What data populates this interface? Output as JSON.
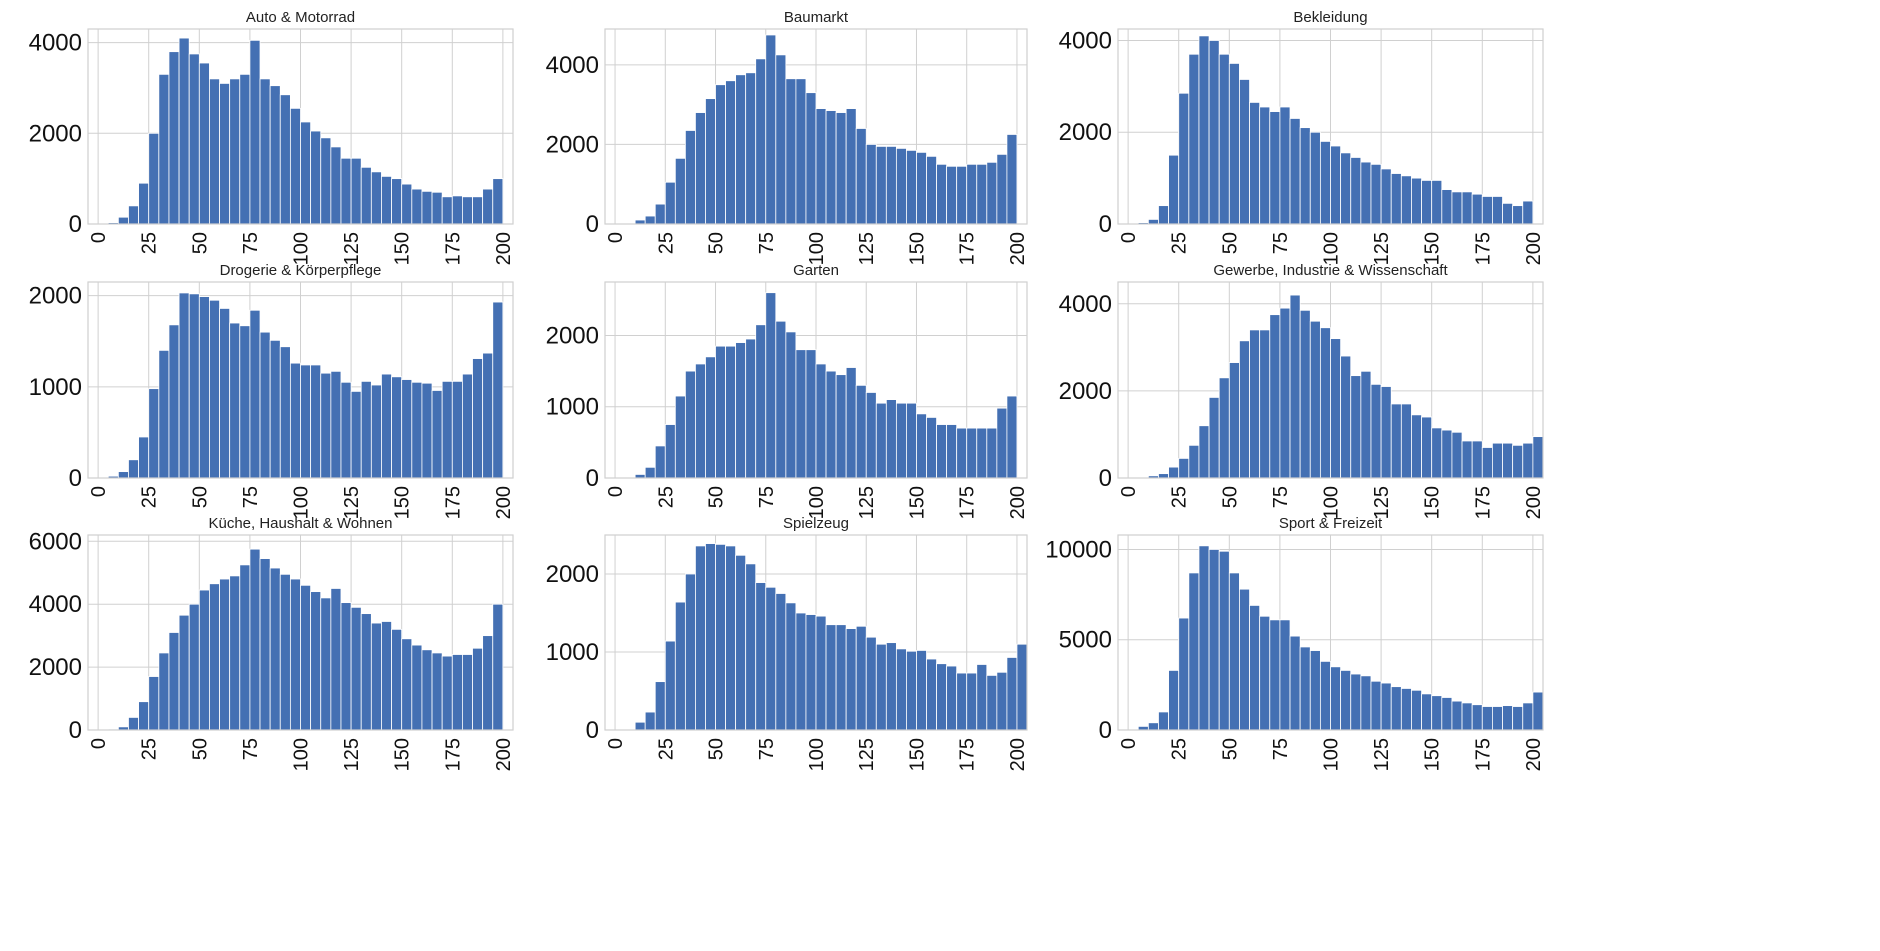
{
  "chart_data": [
    {
      "type": "bar",
      "title": "Auto & Motorrad",
      "bin_start": 0,
      "bin_width": 5,
      "xlim": [
        -5,
        205
      ],
      "ylim": [
        0,
        4300
      ],
      "xticks": [
        0,
        25,
        50,
        75,
        100,
        125,
        150,
        175,
        200
      ],
      "yticks": [
        0,
        2000,
        4000
      ],
      "values": [
        0,
        30,
        150,
        400,
        900,
        2000,
        3300,
        3800,
        4100,
        3750,
        3550,
        3200,
        3100,
        3200,
        3300,
        4050,
        3200,
        3050,
        2850,
        2550,
        2250,
        2050,
        1900,
        1700,
        1450,
        1450,
        1250,
        1150,
        1050,
        1000,
        880,
        770,
        720,
        700,
        600,
        620,
        600,
        600,
        770,
        1000
      ]
    },
    {
      "type": "bar",
      "title": "Baumarkt",
      "bin_start": 0,
      "bin_width": 5,
      "xlim": [
        -5,
        205
      ],
      "ylim": [
        0,
        4900
      ],
      "xticks": [
        0,
        25,
        50,
        75,
        100,
        125,
        150,
        175,
        200
      ],
      "yticks": [
        0,
        2000,
        4000
      ],
      "values": [
        0,
        10,
        100,
        200,
        500,
        1050,
        1650,
        2350,
        2800,
        3150,
        3500,
        3600,
        3750,
        3800,
        4150,
        4750,
        4250,
        3650,
        3650,
        3300,
        2900,
        2850,
        2800,
        2900,
        2400,
        2000,
        1950,
        1950,
        1900,
        1850,
        1800,
        1700,
        1500,
        1450,
        1450,
        1500,
        1500,
        1550,
        1750,
        2250
      ]
    },
    {
      "type": "bar",
      "title": "Bekleidung",
      "bin_start": 0,
      "bin_width": 5,
      "xlim": [
        -5,
        205
      ],
      "ylim": [
        0,
        4250
      ],
      "xticks": [
        0,
        25,
        50,
        75,
        100,
        125,
        150,
        175,
        200
      ],
      "yticks": [
        0,
        2000,
        4000
      ],
      "values": [
        0,
        30,
        100,
        400,
        1500,
        2850,
        3700,
        4100,
        4000,
        3700,
        3500,
        3150,
        2650,
        2550,
        2450,
        2550,
        2300,
        2100,
        2000,
        1800,
        1700,
        1550,
        1450,
        1350,
        1300,
        1200,
        1100,
        1050,
        1000,
        950,
        950,
        750,
        700,
        700,
        650,
        600,
        600,
        450,
        400,
        500
      ]
    },
    {
      "type": "bar",
      "title": "Drogerie & Körperpflege",
      "bin_start": 0,
      "bin_width": 5,
      "xlim": [
        -5,
        205
      ],
      "ylim": [
        0,
        2150
      ],
      "xticks": [
        0,
        25,
        50,
        75,
        100,
        125,
        150,
        175,
        200
      ],
      "yticks": [
        0,
        1000,
        2000
      ],
      "values": [
        0,
        20,
        70,
        200,
        450,
        980,
        1400,
        1680,
        2030,
        2020,
        1990,
        1950,
        1860,
        1700,
        1670,
        1840,
        1600,
        1510,
        1440,
        1260,
        1240,
        1240,
        1150,
        1170,
        1050,
        950,
        1060,
        1020,
        1140,
        1110,
        1080,
        1050,
        1040,
        960,
        1060,
        1060,
        1140,
        1310,
        1370,
        1930
      ]
    },
    {
      "type": "bar",
      "title": "Garten",
      "bin_start": 0,
      "bin_width": 5,
      "xlim": [
        -5,
        205
      ],
      "ylim": [
        0,
        2750
      ],
      "xticks": [
        0,
        25,
        50,
        75,
        100,
        125,
        150,
        175,
        200
      ],
      "yticks": [
        0,
        1000,
        2000
      ],
      "values": [
        0,
        10,
        50,
        150,
        450,
        750,
        1150,
        1500,
        1600,
        1700,
        1850,
        1850,
        1900,
        1950,
        2150,
        2600,
        2200,
        2050,
        1800,
        1800,
        1600,
        1500,
        1450,
        1550,
        1300,
        1200,
        1050,
        1100,
        1050,
        1050,
        900,
        850,
        750,
        750,
        700,
        700,
        700,
        700,
        980,
        1150
      ]
    },
    {
      "type": "bar",
      "title": "Gewerbe, Industrie & Wissenschaft",
      "bin_start": 0,
      "bin_width": 5,
      "xlim": [
        -5,
        205
      ],
      "ylim": [
        0,
        4500
      ],
      "xticks": [
        0,
        25,
        50,
        75,
        100,
        125,
        150,
        175,
        200
      ],
      "yticks": [
        0,
        2000,
        4000
      ],
      "values": [
        0,
        20,
        50,
        100,
        250,
        450,
        750,
        1200,
        1850,
        2300,
        2650,
        3150,
        3400,
        3400,
        3750,
        3900,
        4200,
        3850,
        3600,
        3450,
        3200,
        2800,
        2350,
        2450,
        2150,
        2100,
        1700,
        1700,
        1450,
        1400,
        1150,
        1100,
        1050,
        850,
        850,
        700,
        800,
        800,
        750,
        800,
        950
      ]
    },
    {
      "type": "bar",
      "title": "Küche, Haushalt & Wohnen",
      "bin_start": 0,
      "bin_width": 5,
      "xlim": [
        -5,
        205
      ],
      "ylim": [
        0,
        6200
      ],
      "xticks": [
        0,
        25,
        50,
        75,
        100,
        125,
        150,
        175,
        200
      ],
      "yticks": [
        0,
        2000,
        4000,
        6000
      ],
      "values": [
        0,
        30,
        100,
        400,
        900,
        1700,
        2450,
        3100,
        3650,
        4000,
        4450,
        4650,
        4800,
        4900,
        5250,
        5750,
        5450,
        5150,
        4950,
        4800,
        4600,
        4400,
        4200,
        4500,
        4050,
        3900,
        3700,
        3400,
        3450,
        3200,
        2900,
        2700,
        2550,
        2450,
        2350,
        2400,
        2400,
        2600,
        3000,
        4000
      ]
    },
    {
      "type": "bar",
      "title": "Spielzeug",
      "bin_start": 0,
      "bin_width": 5,
      "xlim": [
        -5,
        205
      ],
      "ylim": [
        0,
        2500
      ],
      "xticks": [
        0,
        25,
        50,
        75,
        100,
        125,
        150,
        175,
        200
      ],
      "yticks": [
        0,
        1000,
        2000
      ],
      "values": [
        0,
        10,
        100,
        230,
        620,
        1140,
        1640,
        2000,
        2360,
        2390,
        2380,
        2360,
        2240,
        2130,
        1890,
        1830,
        1750,
        1630,
        1500,
        1480,
        1460,
        1350,
        1350,
        1300,
        1330,
        1190,
        1100,
        1120,
        1040,
        1010,
        1020,
        910,
        850,
        820,
        730,
        730,
        840,
        700,
        740,
        930,
        1100
      ]
    },
    {
      "type": "bar",
      "title": "Sport & Freizeit",
      "bin_start": 0,
      "bin_width": 5,
      "xlim": [
        -5,
        205
      ],
      "ylim": [
        0,
        10800
      ],
      "xticks": [
        0,
        25,
        50,
        75,
        100,
        125,
        150,
        175,
        200
      ],
      "yticks": [
        0,
        5000,
        10000
      ],
      "values": [
        0,
        200,
        400,
        1000,
        3300,
        6200,
        8700,
        10200,
        10000,
        9900,
        8700,
        7800,
        6900,
        6300,
        6100,
        6100,
        5200,
        4600,
        4400,
        3800,
        3500,
        3300,
        3100,
        3000,
        2700,
        2600,
        2400,
        2300,
        2200,
        2000,
        1900,
        1800,
        1600,
        1500,
        1400,
        1300,
        1300,
        1350,
        1300,
        1500,
        2100
      ]
    }
  ]
}
